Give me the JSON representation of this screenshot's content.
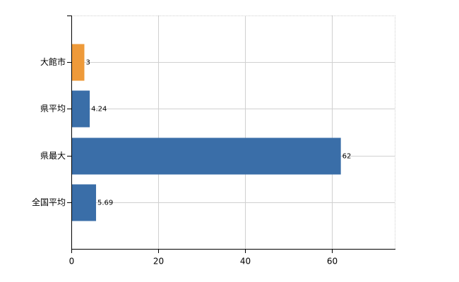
{
  "chart_data": {
    "type": "hbar",
    "categories": [
      "大館市",
      "県平均",
      "県最大",
      "全国平均"
    ],
    "values": [
      3,
      4.24,
      62,
      5.69
    ],
    "colors": [
      "#ee9a3a",
      "#3a6ea8",
      "#3a6ea8",
      "#3a6ea8"
    ],
    "xlim": [
      0,
      74.4
    ],
    "xticks": [
      0,
      20,
      40,
      60
    ],
    "grid": true
  }
}
